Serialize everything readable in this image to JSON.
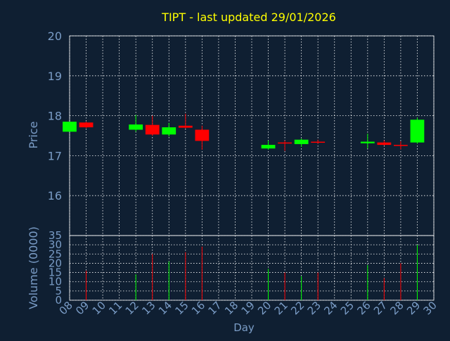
{
  "title": "TIPT - last updated 29/01/2026",
  "colors": {
    "background": "#0f1f32",
    "title": "#ffff00",
    "axis_text": "#7a9cc6",
    "grid": "#ffffff",
    "up": "#00ff00",
    "down": "#ff0000"
  },
  "chart_data": [
    {
      "type": "candlestick",
      "title": "TIPT - last updated 29/01/2026",
      "ylabel": "Price",
      "ylim": [
        15,
        20
      ],
      "yticks": [
        16,
        17,
        18,
        19,
        20
      ],
      "grid": true,
      "x_categories": [
        "08",
        "09",
        "10",
        "11",
        "12",
        "13",
        "14",
        "15",
        "16",
        "17",
        "18",
        "19",
        "20",
        "21",
        "22",
        "23",
        "24",
        "25",
        "26",
        "27",
        "28",
        "29",
        "30"
      ],
      "candles": [
        {
          "day": "08",
          "open": 17.6,
          "close": 17.85,
          "high": 17.85,
          "low": 17.6
        },
        {
          "day": "09",
          "open": 17.83,
          "close": 17.71,
          "high": 17.85,
          "low": 17.69
        },
        {
          "day": "12",
          "open": 17.65,
          "close": 17.78,
          "high": 18.02,
          "low": 17.6
        },
        {
          "day": "13",
          "open": 17.77,
          "close": 17.53,
          "high": 18.0,
          "low": 17.5
        },
        {
          "day": "14",
          "open": 17.53,
          "close": 17.71,
          "high": 17.82,
          "low": 17.48
        },
        {
          "day": "15",
          "open": 17.75,
          "close": 17.7,
          "high": 18.05,
          "low": 17.68
        },
        {
          "day": "16",
          "open": 17.65,
          "close": 17.37,
          "high": 17.75,
          "low": 17.15
        },
        {
          "day": "20",
          "open": 17.18,
          "close": 17.27,
          "high": 17.38,
          "low": 17.15
        },
        {
          "day": "21",
          "open": 17.33,
          "close": 17.31,
          "high": 17.38,
          "low": 17.12
        },
        {
          "day": "22",
          "open": 17.29,
          "close": 17.4,
          "high": 17.43,
          "low": 17.22
        },
        {
          "day": "23",
          "open": 17.35,
          "close": 17.33,
          "high": 17.4,
          "low": 17.3
        },
        {
          "day": "26",
          "open": 17.31,
          "close": 17.35,
          "high": 17.55,
          "low": 17.18
        },
        {
          "day": "27",
          "open": 17.33,
          "close": 17.27,
          "high": 17.38,
          "low": 17.25
        },
        {
          "day": "28",
          "open": 17.27,
          "close": 17.26,
          "high": 17.36,
          "low": 17.16
        },
        {
          "day": "29",
          "open": 17.33,
          "close": 17.9,
          "high": 17.95,
          "low": 17.3
        }
      ]
    },
    {
      "type": "bar",
      "ylabel": "Volume (0000)",
      "xlabel": "Day",
      "ylim": [
        0,
        35
      ],
      "yticks": [
        0,
        5,
        10,
        15,
        20,
        25,
        30,
        35
      ],
      "grid": true,
      "x_categories": [
        "08",
        "09",
        "10",
        "11",
        "12",
        "13",
        "14",
        "15",
        "16",
        "17",
        "18",
        "19",
        "20",
        "21",
        "22",
        "23",
        "24",
        "25",
        "26",
        "27",
        "28",
        "29",
        "30"
      ],
      "bars": [
        {
          "day": "09",
          "value": 16,
          "direction": "down"
        },
        {
          "day": "12",
          "value": 14,
          "direction": "up"
        },
        {
          "day": "13",
          "value": 25,
          "direction": "down"
        },
        {
          "day": "14",
          "value": 21,
          "direction": "up"
        },
        {
          "day": "15",
          "value": 26,
          "direction": "down"
        },
        {
          "day": "16",
          "value": 29,
          "direction": "down"
        },
        {
          "day": "20",
          "value": 17,
          "direction": "up"
        },
        {
          "day": "21",
          "value": 15,
          "direction": "down"
        },
        {
          "day": "22",
          "value": 13,
          "direction": "up"
        },
        {
          "day": "23",
          "value": 15,
          "direction": "down"
        },
        {
          "day": "26",
          "value": 19,
          "direction": "up"
        },
        {
          "day": "27",
          "value": 12,
          "direction": "down"
        },
        {
          "day": "28",
          "value": 20,
          "direction": "down"
        },
        {
          "day": "29",
          "value": 30,
          "direction": "up"
        }
      ]
    }
  ]
}
